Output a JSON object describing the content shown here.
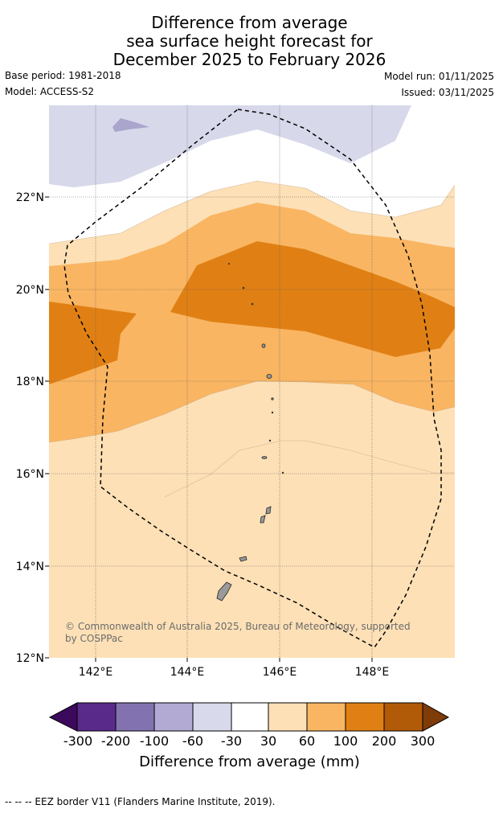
{
  "header": {
    "title_line1": "Difference from average",
    "title_line2": "sea surface height forecast for",
    "title_line3": "December 2025 to February 2026",
    "base_period": "Base period: 1981-2018",
    "model": "Model: ACCESS-S2",
    "model_run": "Model run: 01/11/2025",
    "issued": "Issued: 03/11/2025"
  },
  "map": {
    "lat_labels": [
      "22°N",
      "20°N",
      "18°N",
      "16°N",
      "14°N",
      "12°N"
    ],
    "lon_labels": [
      "142°E",
      "144°E",
      "146°E",
      "148°E"
    ],
    "copyright": "© Commonwealth of Australia 2025, Bureau of Meteorology, supported by COSPPac",
    "colors": {
      "neg30_0": "#d7d8ea",
      "neg60_neg30_dark": "#a9a5cc",
      "pos30_60": "#fde0b6",
      "pos60_100": "#f9b562",
      "pos100_200": "#e08014",
      "land": "#9a9a9a"
    }
  },
  "colorbar": {
    "labels": [
      "-300",
      "-200",
      "-100",
      "-60",
      "-30",
      "30",
      "60",
      "100",
      "200",
      "300"
    ],
    "colors": [
      "#3c0a5c",
      "#5a2a8a",
      "#8273b0",
      "#b2aad2",
      "#d8d9ea",
      "#ffffff",
      "#fde0b6",
      "#f9b562",
      "#e08014",
      "#b15a08",
      "#7f3b08"
    ],
    "title": "Difference from average (mm)"
  },
  "footer": {
    "legend": "-- -- -- EEZ border V11 (Flanders Marine Institute, 2019)."
  }
}
